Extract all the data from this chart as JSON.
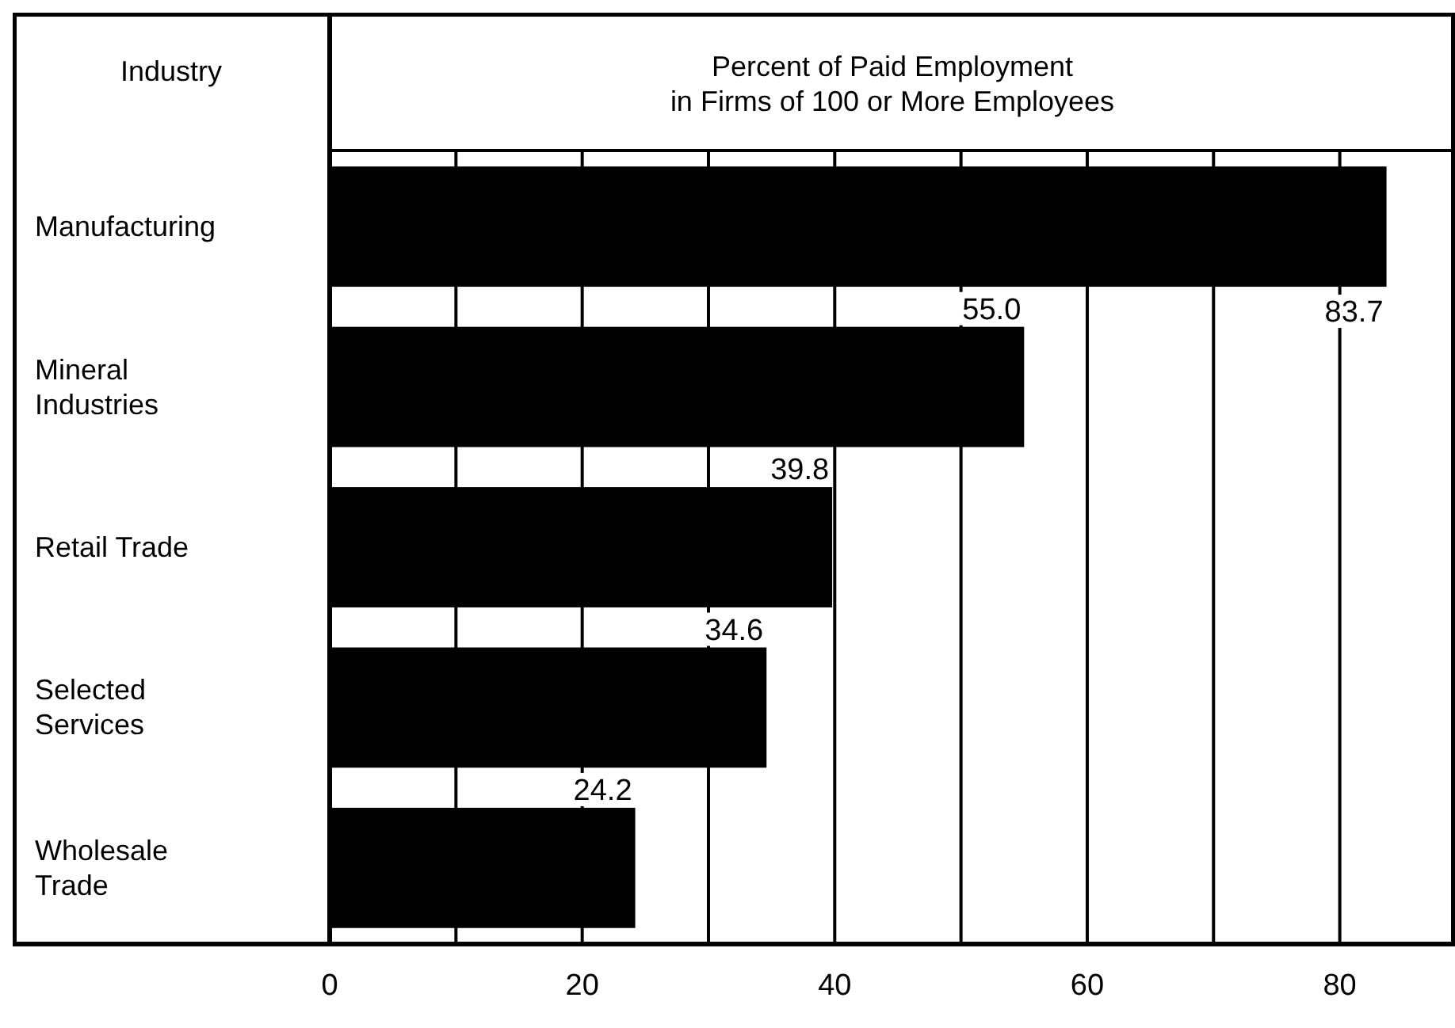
{
  "chart_data": {
    "type": "bar",
    "orientation": "horizontal",
    "ylabel": "Industry",
    "xlabel": "Percent of Paid Employment\nin Firms of 100 or More Employees",
    "categories": [
      "Manufacturing",
      "Mineral\nIndustries",
      "Retail Trade",
      "Selected\nServices",
      "Wholesale\nTrade"
    ],
    "values": [
      83.7,
      55.0,
      39.8,
      34.6,
      24.2
    ],
    "value_labels": [
      "83.7",
      "55.0",
      "39.8",
      "34.6",
      "24.2"
    ],
    "color": "#000000",
    "xlim": [
      0,
      89
    ],
    "xticks": [
      0,
      {
        "value": 10,
        "label": null
      },
      20,
      {
        "value": 30,
        "label": null
      },
      40,
      {
        "value": 50,
        "label": null
      },
      60,
      {
        "value": 70,
        "label": null
      },
      80
    ],
    "grid": "x"
  }
}
